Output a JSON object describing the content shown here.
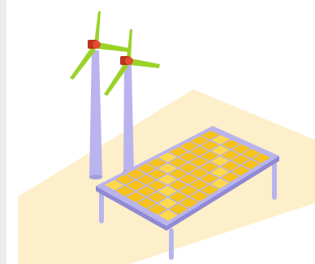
{
  "colors": {
    "background": "#ffffff",
    "left_strip": "#ecebf0",
    "ground": "#fdefc9",
    "tower": "#b9b4ee",
    "tower_shadow": "#a39ddf",
    "blade": "#9bd228",
    "blade_dark": "#7fb61d",
    "hub": "#e64a2e",
    "hub_dark": "#b83520",
    "panel_cell": "#f7c21b",
    "panel_cell_light": "#ffd94a",
    "panel_frame": "#b9b4ee",
    "panel_frame_dark": "#8f89d6",
    "panel_leg": "#b9b4ee"
  },
  "scene": {
    "subjects": [
      "wind-turbine",
      "wind-turbine",
      "solar-panel"
    ]
  }
}
